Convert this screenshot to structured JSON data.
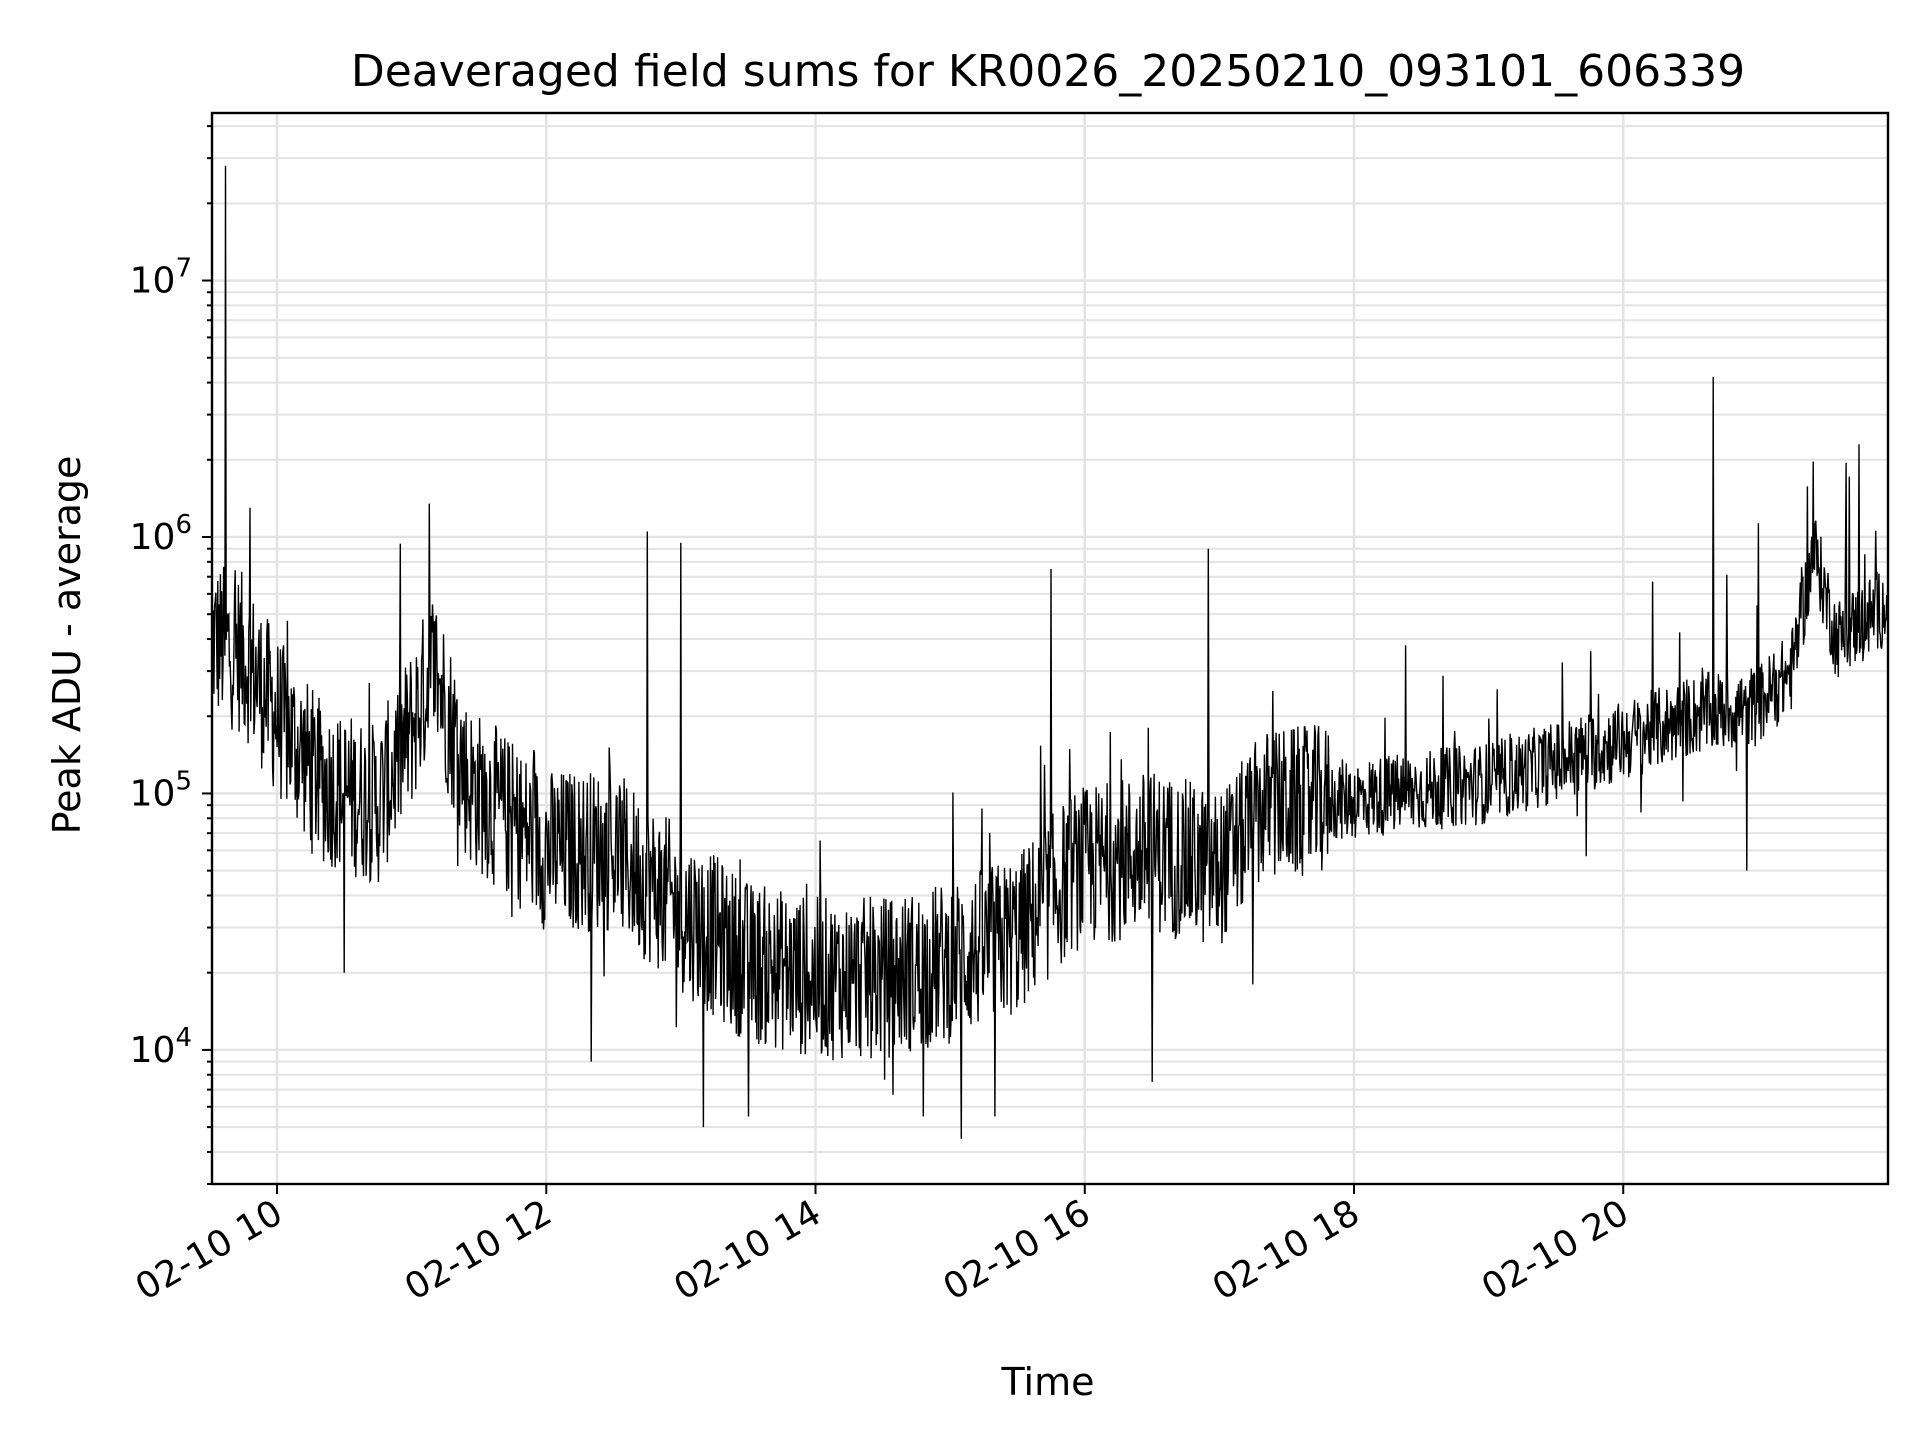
{
  "chart_data": {
    "type": "line",
    "title": "Deaveraged field sums for KR0026_20250210_093101_606339",
    "xlabel": "Time",
    "ylabel": "Peak ADU - average",
    "x_axis": {
      "kind": "datetime",
      "start": "2025-02-10T09:31:01",
      "end": "2025-02-10T21:58:00",
      "ticks": [
        "02-10 10",
        "02-10 12",
        "02-10 14",
        "02-10 16",
        "02-10 18",
        "02-10 20"
      ],
      "tick_values": [
        "2025-02-10T10:00",
        "2025-02-10T12:00",
        "2025-02-10T14:00",
        "2025-02-10T16:00",
        "2025-02-10T18:00",
        "2025-02-10T20:00"
      ]
    },
    "y_axis": {
      "scale": "log",
      "ylim": [
        3000,
        45000000
      ],
      "major_ticks": [
        {
          "value": 10000,
          "base": "10",
          "exp": "4"
        },
        {
          "value": 100000,
          "base": "10",
          "exp": "5"
        },
        {
          "value": 1000000,
          "base": "10",
          "exp": "6"
        },
        {
          "value": 10000000,
          "base": "10",
          "exp": "7"
        }
      ]
    },
    "grid": "major and minor",
    "line_color": "#000000",
    "series": [
      {
        "values_note_free": true,
        "trend": [
          {
            "x": "2025-02-10T09:31",
            "y": 400000
          },
          {
            "x": "2025-02-10T09:45",
            "y": 350000
          },
          {
            "x": "2025-02-10T10:00",
            "y": 200000
          },
          {
            "x": "2025-02-10T10:20",
            "y": 110000
          },
          {
            "x": "2025-02-10T10:45",
            "y": 90000
          },
          {
            "x": "2025-02-10T11:00",
            "y": 180000
          },
          {
            "x": "2025-02-10T11:10",
            "y": 320000
          },
          {
            "x": "2025-02-10T11:25",
            "y": 110000
          },
          {
            "x": "2025-02-10T12:00",
            "y": 60000
          },
          {
            "x": "2025-02-10T12:30",
            "y": 60000
          },
          {
            "x": "2025-02-10T13:00",
            "y": 35000
          },
          {
            "x": "2025-02-10T13:30",
            "y": 22000
          },
          {
            "x": "2025-02-10T14:00",
            "y": 19000
          },
          {
            "x": "2025-02-10T14:30",
            "y": 19000
          },
          {
            "x": "2025-02-10T15:00",
            "y": 22000
          },
          {
            "x": "2025-02-10T15:30",
            "y": 28000
          },
          {
            "x": "2025-02-10T15:55",
            "y": 50000
          },
          {
            "x": "2025-02-10T16:30",
            "y": 60000
          },
          {
            "x": "2025-02-10T17:00",
            "y": 50000
          },
          {
            "x": "2025-02-10T17:20",
            "y": 90000
          },
          {
            "x": "2025-02-10T18:00",
            "y": 95000
          },
          {
            "x": "2025-02-10T19:00",
            "y": 110000
          },
          {
            "x": "2025-02-10T20:00",
            "y": 160000
          },
          {
            "x": "2025-02-10T20:30",
            "y": 200000
          },
          {
            "x": "2025-02-10T21:00",
            "y": 220000
          },
          {
            "x": "2025-02-10T21:15",
            "y": 300000
          },
          {
            "x": "2025-02-10T21:25",
            "y": 900000
          },
          {
            "x": "2025-02-10T21:35",
            "y": 400000
          },
          {
            "x": "2025-02-10T21:58",
            "y": 550000
          }
        ],
        "spikes": [
          {
            "x": "2025-02-10T09:37",
            "y": 28000000
          },
          {
            "x": "2025-02-10T09:48",
            "y": 1300000
          },
          {
            "x": "2025-02-10T11:08",
            "y": 1350000
          },
          {
            "x": "2025-02-10T12:45",
            "y": 1050000
          },
          {
            "x": "2025-02-10T13:00",
            "y": 950000
          },
          {
            "x": "2025-02-10T15:45",
            "y": 750000
          },
          {
            "x": "2025-02-10T16:55",
            "y": 900000
          },
          {
            "x": "2025-02-10T20:40",
            "y": 4200000
          },
          {
            "x": "2025-02-10T21:45",
            "y": 2300000
          }
        ],
        "dips": [
          {
            "x": "2025-02-10T10:30",
            "y": 20000
          },
          {
            "x": "2025-02-10T12:20",
            "y": 9000
          },
          {
            "x": "2025-02-10T13:10",
            "y": 5000
          },
          {
            "x": "2025-02-10T13:30",
            "y": 5500
          },
          {
            "x": "2025-02-10T14:48",
            "y": 5500
          },
          {
            "x": "2025-02-10T15:05",
            "y": 4500
          },
          {
            "x": "2025-02-10T15:20",
            "y": 5500
          },
          {
            "x": "2025-02-10T16:30",
            "y": 7500
          },
          {
            "x": "2025-02-10T17:15",
            "y": 18000
          },
          {
            "x": "2025-02-10T20:55",
            "y": 50000
          }
        ]
      }
    ]
  }
}
